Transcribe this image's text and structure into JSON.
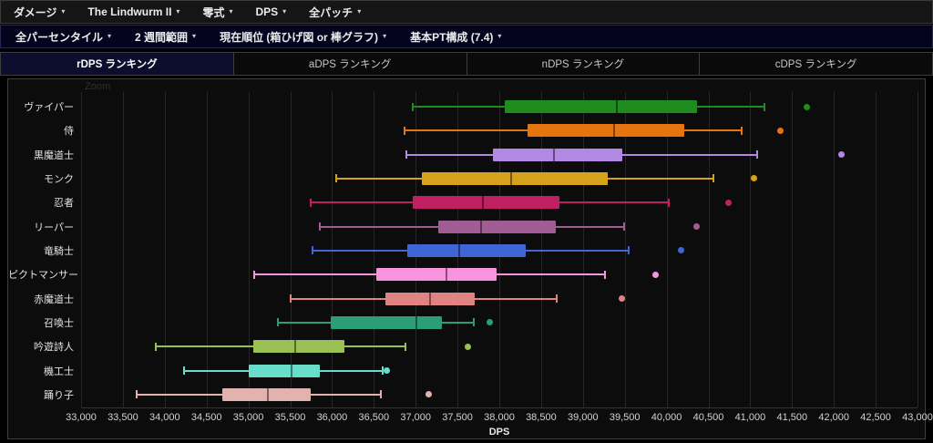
{
  "menubar": {
    "caret": "▾",
    "items": [
      {
        "label": "ダメージ"
      },
      {
        "label": "The Lindwurm II"
      },
      {
        "label": "零式"
      },
      {
        "label": "DPS"
      },
      {
        "label": "全パッチ"
      }
    ]
  },
  "filterbar": {
    "caret": "▾",
    "items": [
      {
        "label": "全パーセンタイル"
      },
      {
        "label": "2 週間範囲"
      },
      {
        "label": "現在順位 (箱ひげ図 or 棒グラフ)"
      },
      {
        "label": "基本PT構成 (7.4)"
      }
    ]
  },
  "tabs": [
    {
      "label": "rDPS ランキング",
      "active": true
    },
    {
      "label": "aDPS ランキング",
      "active": false
    },
    {
      "label": "nDPS ランキング",
      "active": false
    },
    {
      "label": "cDPS ランキング",
      "active": false
    }
  ],
  "chart": {
    "zoom_label": "Zoom"
  },
  "chart_data": {
    "type": "boxplot",
    "orientation": "horizontal",
    "xlabel": "DPS",
    "xlim": [
      33000,
      43000
    ],
    "x_tick_step": 500,
    "grid": true,
    "x_ticks": [
      "33,000",
      "33,500",
      "34,000",
      "34,500",
      "35,000",
      "35,500",
      "36,000",
      "36,500",
      "37,000",
      "37,500",
      "38,000",
      "38,500",
      "39,000",
      "39,500",
      "40,000",
      "40,500",
      "41,000",
      "41,500",
      "42,000",
      "42,500",
      "43,000"
    ],
    "series": [
      {
        "name": "ヴァイパー",
        "color": "#1f8c1f",
        "low": 36970,
        "q1": 38060,
        "median": 39410,
        "q3": 40360,
        "high": 41175,
        "outliers": [
          41680
        ]
      },
      {
        "name": "侍",
        "color": "#e6750f",
        "low": 36870,
        "q1": 38340,
        "median": 39370,
        "q3": 40210,
        "high": 40900,
        "outliers": [
          41360
        ]
      },
      {
        "name": "黒魔道士",
        "color": "#b289e2",
        "low": 36890,
        "q1": 37920,
        "median": 38650,
        "q3": 39470,
        "high": 41080,
        "outliers": [
          42090
        ]
      },
      {
        "name": "モンク",
        "color": "#d6a21c",
        "low": 36050,
        "q1": 37070,
        "median": 38140,
        "q3": 39300,
        "high": 40560,
        "outliers": [
          41040
        ]
      },
      {
        "name": "忍者",
        "color": "#c02062",
        "low": 35750,
        "q1": 36970,
        "median": 37800,
        "q3": 38720,
        "high": 40030,
        "outliers": [
          40740
        ]
      },
      {
        "name": "リーパー",
        "color": "#a25c94",
        "low": 35850,
        "q1": 37270,
        "median": 37780,
        "q3": 38670,
        "high": 39490,
        "outliers": [
          40360
        ]
      },
      {
        "name": "竜騎士",
        "color": "#3f66d4",
        "low": 35770,
        "q1": 36900,
        "median": 37520,
        "q3": 38320,
        "high": 39550,
        "outliers": [
          40170
        ]
      },
      {
        "name": "ピクトマンサー",
        "color": "#f893dd",
        "low": 35070,
        "q1": 36530,
        "median": 37370,
        "q3": 37970,
        "high": 39260,
        "outliers": [
          39870
        ]
      },
      {
        "name": "赤魔道士",
        "color": "#e28383",
        "low": 35500,
        "q1": 36640,
        "median": 37170,
        "q3": 37710,
        "high": 38690,
        "outliers": [
          39470
        ]
      },
      {
        "name": "召喚士",
        "color": "#2b9e77",
        "low": 35350,
        "q1": 35990,
        "median": 37010,
        "q3": 37310,
        "high": 37700,
        "outliers": [
          37890
        ]
      },
      {
        "name": "吟遊詩人",
        "color": "#9abf55",
        "low": 33890,
        "q1": 35060,
        "median": 35560,
        "q3": 36150,
        "high": 36880,
        "outliers": [
          37620
        ]
      },
      {
        "name": "機工士",
        "color": "#67ddca",
        "low": 34230,
        "q1": 35000,
        "median": 35520,
        "q3": 35850,
        "high": 36610,
        "outliers": [
          36650
        ]
      },
      {
        "name": "踊り子",
        "color": "#e2b2ae",
        "low": 33660,
        "q1": 34690,
        "median": 35230,
        "q3": 35750,
        "high": 36580,
        "outliers": [
          37160
        ]
      }
    ]
  }
}
